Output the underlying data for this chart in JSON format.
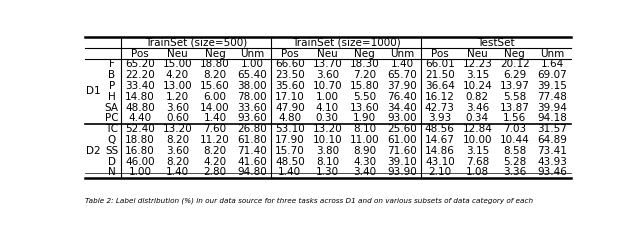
{
  "col_groups": [
    {
      "label": "TrainSet (size=500)",
      "cols": [
        "Pos",
        "Neu",
        "Neg",
        "Unm"
      ]
    },
    {
      "label": "TrainSet (size=1000)",
      "cols": [
        "Pos",
        "Neu",
        "Neg",
        "Unm"
      ]
    },
    {
      "label": "TestSet",
      "cols": [
        "Pos",
        "Neu",
        "Neg",
        "Unm"
      ]
    }
  ],
  "row_groups": [
    {
      "label": "D1",
      "rows": [
        {
          "name": "F",
          "data": [
            65.2,
            15.0,
            18.8,
            1.0,
            66.6,
            13.7,
            18.3,
            1.4,
            66.01,
            12.23,
            20.12,
            1.64
          ]
        },
        {
          "name": "B",
          "data": [
            22.2,
            4.2,
            8.2,
            65.4,
            23.5,
            3.6,
            7.2,
            65.7,
            21.5,
            3.15,
            6.29,
            69.07
          ]
        },
        {
          "name": "P",
          "data": [
            33.4,
            13.0,
            15.6,
            38.0,
            35.6,
            10.7,
            15.8,
            37.9,
            36.64,
            10.24,
            13.97,
            39.15
          ]
        },
        {
          "name": "H",
          "data": [
            14.8,
            1.2,
            6.0,
            78.0,
            17.1,
            1.0,
            5.5,
            76.4,
            16.12,
            0.82,
            5.58,
            77.48
          ]
        },
        {
          "name": "SA",
          "data": [
            48.8,
            3.6,
            14.0,
            33.6,
            47.9,
            4.1,
            13.6,
            34.4,
            42.73,
            3.46,
            13.87,
            39.94
          ]
        },
        {
          "name": "PC",
          "data": [
            4.4,
            0.6,
            1.4,
            93.6,
            4.8,
            0.3,
            1.9,
            93.0,
            3.93,
            0.34,
            1.56,
            94.18
          ]
        }
      ]
    },
    {
      "label": "D2",
      "rows": [
        {
          "name": "TC",
          "data": [
            52.4,
            13.2,
            7.6,
            26.8,
            53.1,
            13.2,
            8.1,
            25.6,
            48.56,
            12.84,
            7.03,
            31.57
          ]
        },
        {
          "name": "Q",
          "data": [
            18.8,
            8.2,
            11.2,
            61.8,
            17.9,
            10.1,
            11.0,
            61.0,
            14.67,
            10.0,
            10.44,
            64.89
          ]
        },
        {
          "name": "SS",
          "data": [
            16.8,
            3.6,
            8.2,
            71.4,
            15.7,
            3.8,
            8.9,
            71.6,
            14.86,
            3.15,
            8.58,
            73.41
          ]
        },
        {
          "name": "D",
          "data": [
            46.0,
            8.2,
            4.2,
            41.6,
            48.5,
            8.1,
            4.3,
            39.1,
            43.1,
            7.68,
            5.28,
            43.93
          ]
        },
        {
          "name": "N",
          "data": [
            1.0,
            1.4,
            2.8,
            94.8,
            1.4,
            1.3,
            3.4,
            93.9,
            2.1,
            1.08,
            3.36,
            93.46
          ]
        }
      ]
    }
  ],
  "caption": "Table 2: Label distribution (%) in our data source for three tasks across D1 and on various subsets of data category of each",
  "background_color": "#ffffff",
  "text_color": "#000000",
  "fontsize": 7.5
}
